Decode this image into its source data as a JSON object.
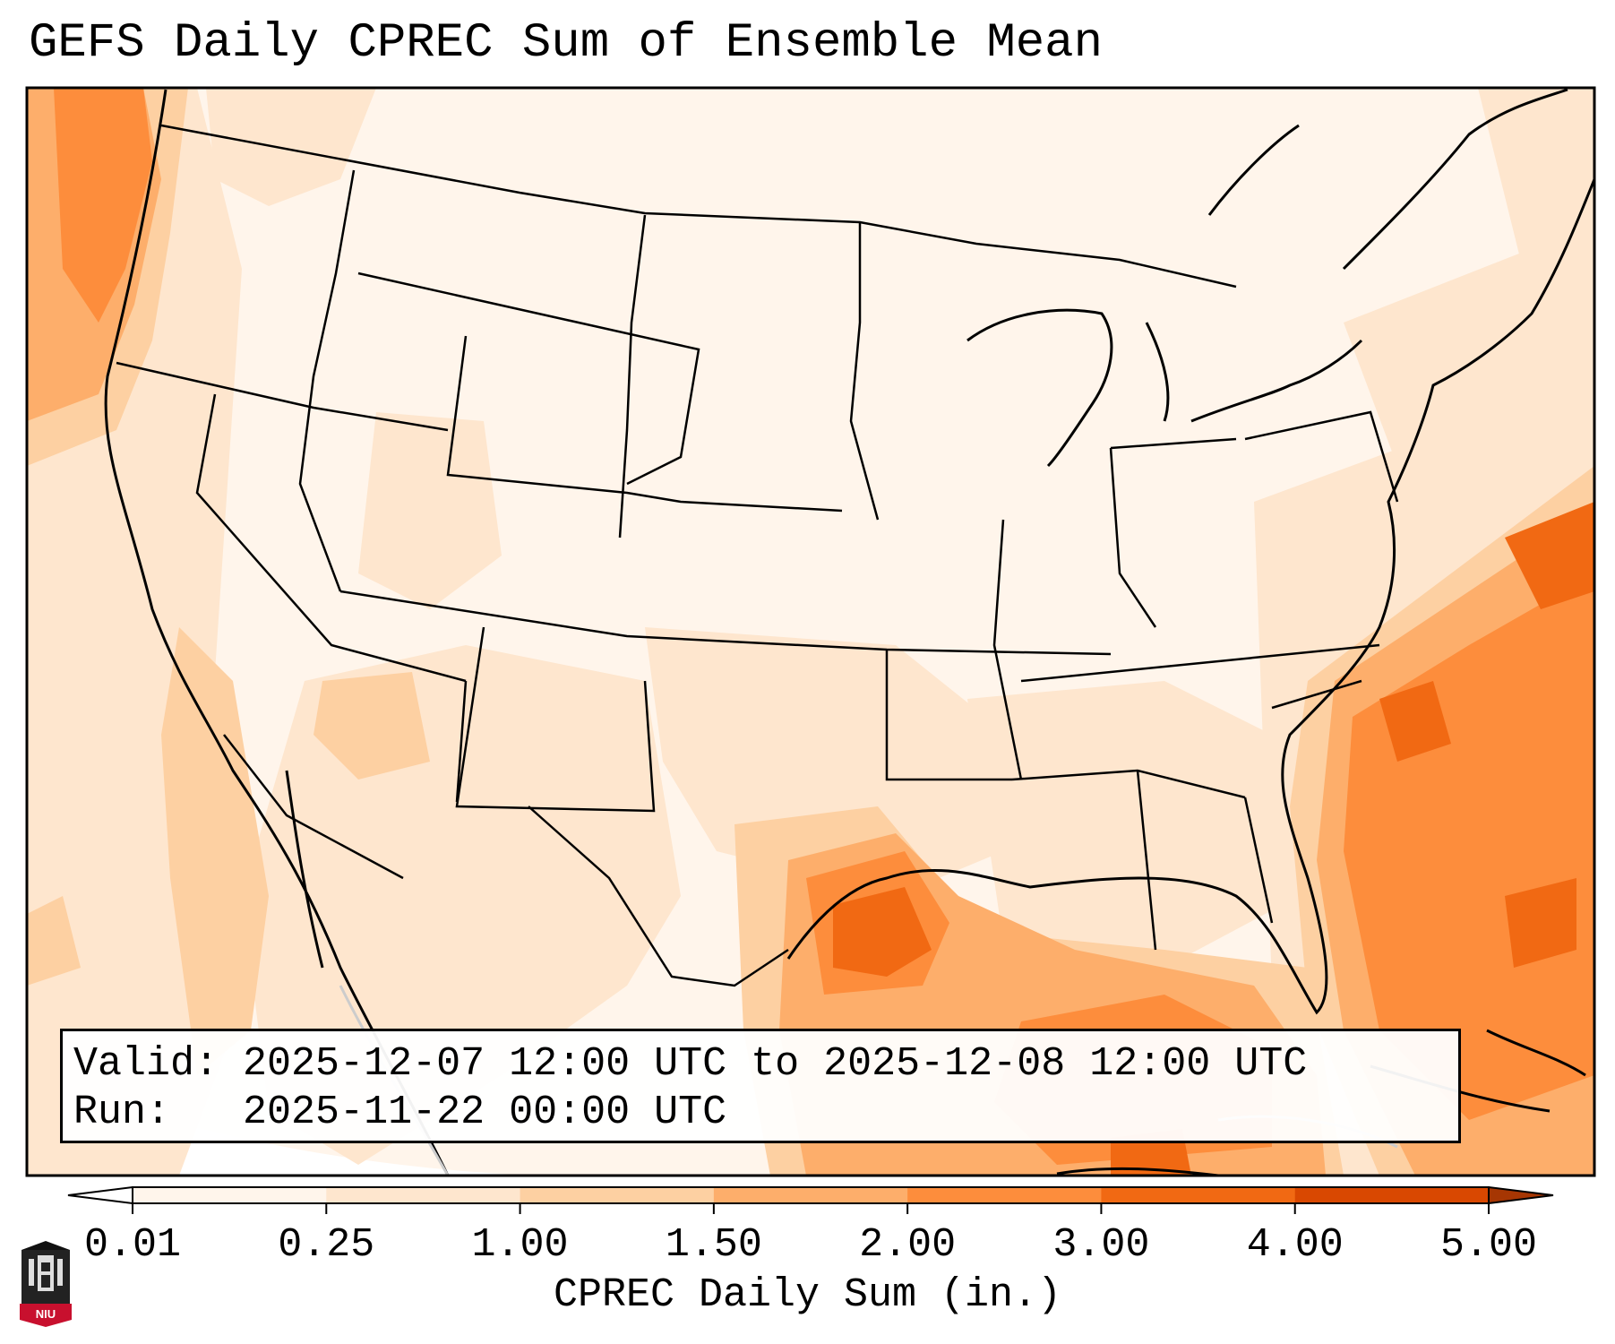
{
  "title": "GEFS Daily CPREC Sum of Ensemble Mean",
  "info": {
    "valid_label": "Valid:",
    "valid_value": "2025-12-07 12:00 UTC to 2025-12-08 12:00 UTC",
    "run_label": "Run:",
    "run_value": "2025-11-22 00:00 UTC"
  },
  "colorbar": {
    "title": "CPREC Daily Sum (in.)",
    "ticks": [
      "0.01",
      "0.25",
      "1.00",
      "1.50",
      "2.00",
      "3.00",
      "4.00",
      "5.00"
    ],
    "colors": [
      "#fff5eb",
      "#fee6ce",
      "#fdd0a2",
      "#fdae6b",
      "#fd8d3c",
      "#f16913",
      "#d94801"
    ],
    "under_color": "#ffffff",
    "over_color": "#a63603",
    "extend": "both"
  },
  "map": {
    "region": "Continental United States",
    "borders": [
      "state boundaries",
      "country boundaries",
      "coastlines"
    ],
    "heaviest_precip_regions": [
      "Pacific Northwest coast",
      "Texas Gulf coast",
      "Gulf of Mexico",
      "Atlantic off the Southeast coast"
    ]
  },
  "logo": {
    "text": "NIU",
    "icon": "university-building-icon"
  }
}
